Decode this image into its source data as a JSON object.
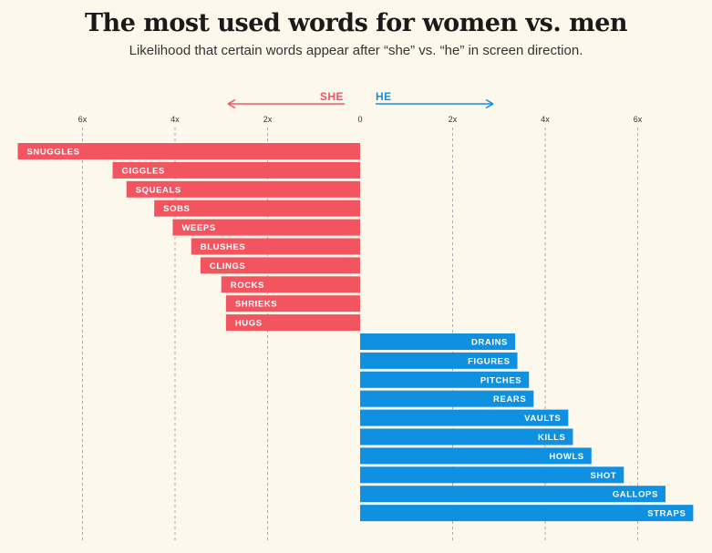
{
  "header": {
    "title": "The most used words for women vs. men",
    "subtitle": "Likelihood that certain words appear after “she” vs. “he” in screen direction."
  },
  "chart_data": {
    "type": "bar",
    "orientation": "horizontal-diverging",
    "title": "The most used words for women vs. men",
    "subtitle": "Likelihood that certain words appear after “she” vs. “he” in screen direction.",
    "direction_labels": {
      "left": "SHE",
      "right": "HE"
    },
    "x_ticks": [
      "6x",
      "4x",
      "2x",
      "0",
      "2x",
      "4x",
      "6x"
    ],
    "x_tick_values": [
      -6,
      -4,
      -2,
      0,
      2,
      4,
      6
    ],
    "xlim": [
      -7.4,
      7.4
    ],
    "grid": true,
    "colors": {
      "she": "#f25560",
      "he": "#1090e0",
      "background": "#fdf8ec",
      "grid": "#aaaaaa"
    },
    "series": [
      {
        "name": "SHE",
        "categories": [
          "SNUGGLES",
          "GIGGLES",
          "SQUEALS",
          "SOBS",
          "WEEPS",
          "BLUSHES",
          "CLINGS",
          "ROCKS",
          "SHRIEKS",
          "HUGS"
        ],
        "values": [
          7.4,
          5.35,
          5.05,
          4.45,
          4.05,
          3.65,
          3.45,
          3.0,
          2.9,
          2.9
        ]
      },
      {
        "name": "HE",
        "categories": [
          "DRAINS",
          "FIGURES",
          "PITCHES",
          "REARS",
          "VAULTS",
          "KILLS",
          "HOWLS",
          "SHOT",
          "GALLOPS",
          "STRAPS"
        ],
        "values": [
          3.35,
          3.4,
          3.65,
          3.75,
          4.5,
          4.6,
          5.0,
          5.7,
          6.6,
          7.2
        ]
      }
    ]
  }
}
